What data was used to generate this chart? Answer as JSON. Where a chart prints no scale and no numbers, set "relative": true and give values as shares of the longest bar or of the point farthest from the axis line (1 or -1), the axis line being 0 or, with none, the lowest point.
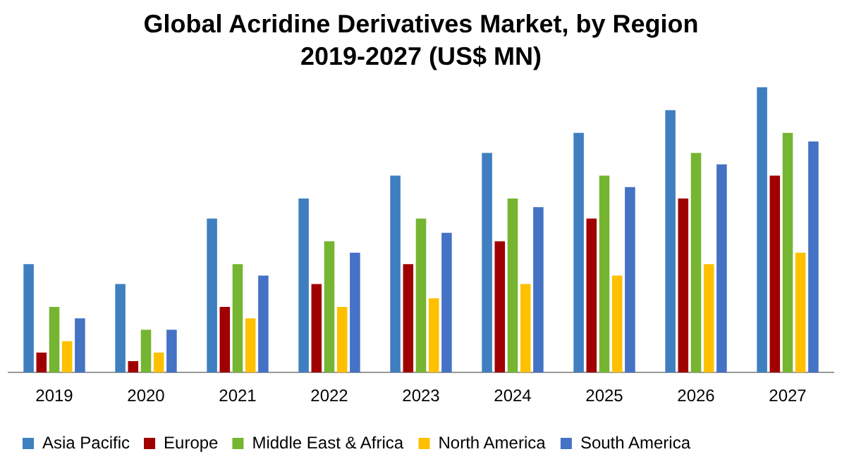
{
  "chart_data": {
    "type": "bar",
    "title": "Global Acridine Derivatives Market, by Region 2019-2027 (US$ MN)",
    "relative": true,
    "categories": [
      "2019",
      "2020",
      "2021",
      "2022",
      "2023",
      "2024",
      "2025",
      "2026",
      "2027"
    ],
    "series": [
      {
        "name": "Asia Pacific",
        "color": "#3f7fc0",
        "values": [
          0.38,
          0.31,
          0.54,
          0.61,
          0.69,
          0.77,
          0.84,
          0.92,
          1
        ]
      },
      {
        "name": "Europe",
        "color": "#a00000",
        "values": [
          0.07,
          0.04,
          0.23,
          0.31,
          0.38,
          0.46,
          0.54,
          0.61,
          0.69
        ]
      },
      {
        "name": "Middle East & Africa",
        "color": "#76b531",
        "values": [
          0.23,
          0.15,
          0.38,
          0.46,
          0.54,
          0.61,
          0.69,
          0.77,
          0.84
        ]
      },
      {
        "name": "North America",
        "color": "#ffc000",
        "values": [
          0.11,
          0.07,
          0.19,
          0.23,
          0.26,
          0.31,
          0.34,
          0.38,
          0.42
        ]
      },
      {
        "name": "South America",
        "color": "#4472c4",
        "values": [
          0.19,
          0.15,
          0.34,
          0.42,
          0.49,
          0.58,
          0.65,
          0.73,
          0.81
        ]
      }
    ],
    "grid": false,
    "legend": "bottom"
  }
}
